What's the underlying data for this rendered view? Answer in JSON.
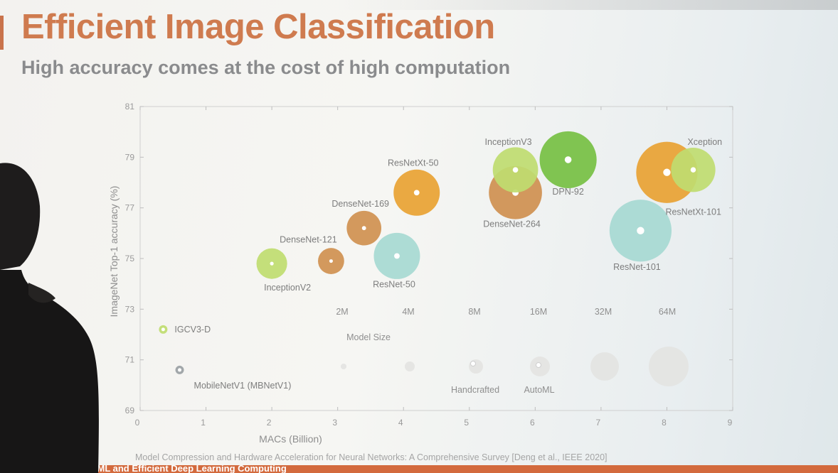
{
  "slide": {
    "title": "Efficient Image Classification",
    "subtitle": "High accuracy comes at the cost of high computation",
    "citation": "Model Compression and Hardware Acceleration for Neural Networks: A Comprehensive Survey [Deng et al., IEEE 2020]",
    "footer": "TinyML and Efficient Deep Learning Computing"
  },
  "colors": {
    "title": "#cf7b4f",
    "orange": "#e8a233",
    "copper": "#cf9050",
    "green_light": "#bfdc70",
    "green_dark": "#76c043",
    "teal": "#a6d9d3",
    "gray": "#9aa0a4",
    "footer": "#d36a3d"
  },
  "chart_data": {
    "type": "scatter",
    "xlabel": "MACs (Billion)",
    "ylabel": "ImageNet Top-1 accuracy (%)",
    "xlim": [
      0,
      9
    ],
    "ylim": [
      69,
      81
    ],
    "xticks": [
      "0",
      "1",
      "2",
      "3",
      "4",
      "5",
      "6",
      "7",
      "8",
      "9"
    ],
    "yticks": [
      "69",
      "71",
      "73",
      "75",
      "77",
      "79",
      "81"
    ],
    "points": [
      {
        "name": "IGCV3-D",
        "x": 0.35,
        "y": 72.2,
        "size_m": 0.5,
        "color": "green_light"
      },
      {
        "name": "MobileNetV1 (MBNetV1)",
        "x": 0.6,
        "y": 70.6,
        "size_m": 0.5,
        "color": "gray"
      },
      {
        "name": "InceptionV2",
        "x": 2.0,
        "y": 74.8,
        "size_m": 11,
        "color": "green_light"
      },
      {
        "name": "DenseNet-121",
        "x": 2.9,
        "y": 74.9,
        "size_m": 8,
        "color": "copper"
      },
      {
        "name": "DenseNet-169",
        "x": 3.4,
        "y": 76.2,
        "size_m": 14,
        "color": "copper"
      },
      {
        "name": "ResNet-50",
        "x": 3.9,
        "y": 75.1,
        "size_m": 25,
        "color": "teal"
      },
      {
        "name": "ResNetXt-50",
        "x": 4.2,
        "y": 77.6,
        "size_m": 25,
        "color": "orange"
      },
      {
        "name": "InceptionV3",
        "x": 5.7,
        "y": 78.5,
        "size_m": 24,
        "color": "green_light"
      },
      {
        "name": "DenseNet-264",
        "x": 5.7,
        "y": 77.6,
        "size_m": 33,
        "color": "copper"
      },
      {
        "name": "DPN-92",
        "x": 6.5,
        "y": 78.9,
        "size_m": 38,
        "color": "green_dark"
      },
      {
        "name": "ResNet-101",
        "x": 7.6,
        "y": 76.1,
        "size_m": 45,
        "color": "teal"
      },
      {
        "name": "ResNetXt-101",
        "x": 8.0,
        "y": 78.4,
        "size_m": 44,
        "color": "orange"
      },
      {
        "name": "Xception",
        "x": 8.4,
        "y": 78.5,
        "size_m": 23,
        "color": "green_light"
      }
    ],
    "size_legend": {
      "title": "Model Size",
      "entries": [
        "2M",
        "4M",
        "8M",
        "16M",
        "32M",
        "64M"
      ]
    },
    "type_legend": [
      "Handcrafted",
      "AutoML"
    ]
  }
}
